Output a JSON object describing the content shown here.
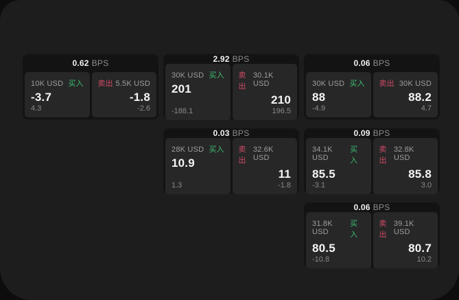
{
  "labels": {
    "unit": "BPS",
    "buy": "买入",
    "sell": "卖出"
  },
  "colors": {
    "window_background": "#1d1d1e",
    "card_background": "#131314",
    "panel_background": "#272728",
    "buy_accent": "#3dbd70",
    "sell_accent": "#d04a64"
  },
  "cards": [
    {
      "bps": "0.62",
      "buy": {
        "amount": "10K USD",
        "value": "-3.7",
        "sub": "4.3"
      },
      "sell": {
        "amount": "5.5K USD",
        "value": "-1.8",
        "sub": "-2.6"
      }
    },
    {
      "bps": "2.92",
      "buy": {
        "amount": "30K USD",
        "value": "201",
        "sub": "-188.1"
      },
      "sell": {
        "amount": "30.1K USD",
        "value": "210",
        "sub": "196.5"
      }
    },
    {
      "bps": "0.06",
      "buy": {
        "amount": "30K USD",
        "value": "88",
        "sub": "-4.9"
      },
      "sell": {
        "amount": "30K USD",
        "value": "88.2",
        "sub": "4.7"
      }
    },
    {
      "bps": "0.03",
      "buy": {
        "amount": "28K USD",
        "value": "10.9",
        "sub": "1.3"
      },
      "sell": {
        "amount": "32.6K USD",
        "value": "11",
        "sub": "-1.8"
      }
    },
    {
      "bps": "0.09",
      "buy": {
        "amount": "34.1K USD",
        "value": "85.5",
        "sub": "-3.1"
      },
      "sell": {
        "amount": "32.8K USD",
        "value": "85.8",
        "sub": "3.0"
      }
    },
    {
      "bps": "0.06",
      "buy": {
        "amount": "31.8K USD",
        "value": "80.5",
        "sub": "-10.8"
      },
      "sell": {
        "amount": "39.1K USD",
        "value": "80.7",
        "sub": "10.2"
      }
    }
  ]
}
